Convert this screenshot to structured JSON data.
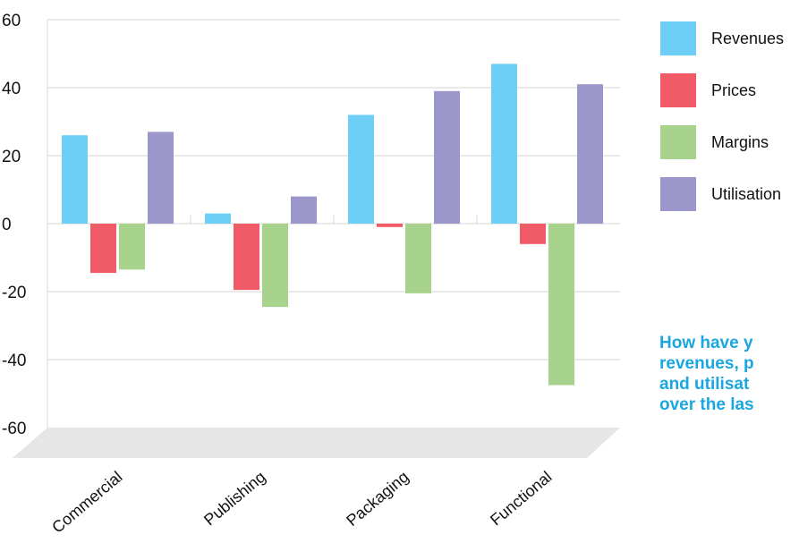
{
  "chart_data": {
    "type": "bar",
    "categories": [
      "Commercial",
      "Publishing",
      "Packaging",
      "Functional"
    ],
    "series": [
      {
        "name": "Revenues",
        "color": "#6dcff6",
        "values": [
          26,
          3,
          32,
          47
        ]
      },
      {
        "name": "Prices",
        "color": "#f15b67",
        "values": [
          -14.5,
          -19.5,
          -1,
          -6
        ]
      },
      {
        "name": "Margins",
        "color": "#a8d38c",
        "values": [
          -13.5,
          -24.5,
          -20.5,
          -47.5
        ]
      },
      {
        "name": "Utilisation",
        "color": "#9b97cb",
        "values": [
          27,
          8,
          39,
          41
        ]
      }
    ],
    "ylim": [
      -60,
      60
    ],
    "yticks": [
      60,
      40,
      20,
      0,
      -20,
      -40,
      -60
    ],
    "grid": true,
    "legend_position": "right",
    "question_lines": [
      "How have y",
      "revenues, p",
      "and utilisat",
      "over the las"
    ]
  }
}
